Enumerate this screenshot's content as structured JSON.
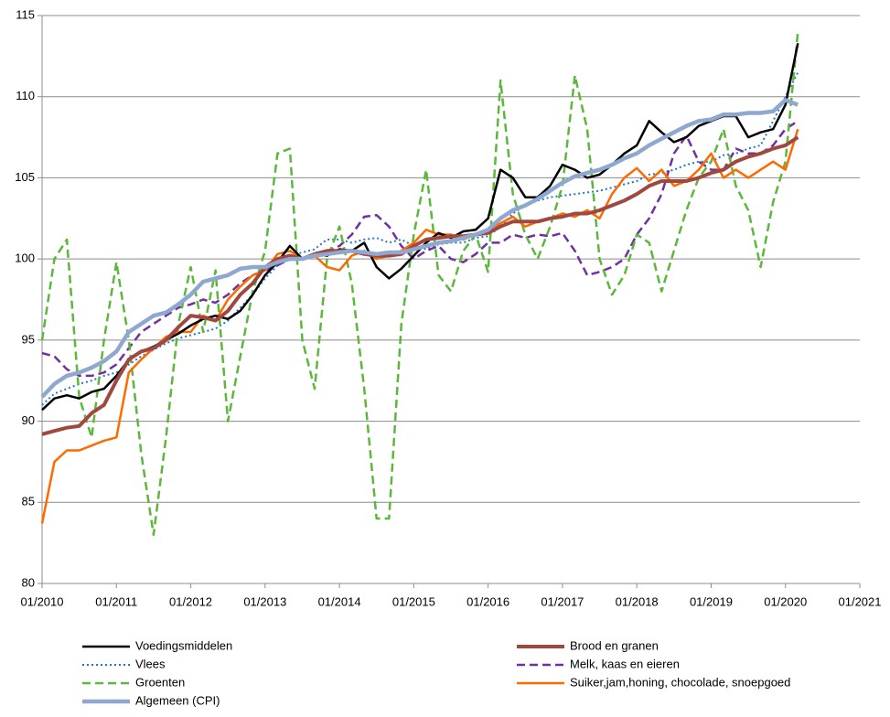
{
  "chart_data": {
    "type": "line",
    "x": [
      "01/2010",
      "03/2010",
      "05/2010",
      "07/2010",
      "09/2010",
      "11/2010",
      "01/2011",
      "03/2011",
      "05/2011",
      "07/2011",
      "09/2011",
      "11/2011",
      "01/2012",
      "03/2012",
      "05/2012",
      "07/2012",
      "09/2012",
      "11/2012",
      "01/2013",
      "03/2013",
      "05/2013",
      "07/2013",
      "09/2013",
      "11/2013",
      "01/2014",
      "03/2014",
      "05/2014",
      "07/2014",
      "09/2014",
      "11/2014",
      "01/2015",
      "03/2015",
      "05/2015",
      "07/2015",
      "09/2015",
      "11/2015",
      "01/2016",
      "03/2016",
      "05/2016",
      "07/2016",
      "09/2016",
      "11/2016",
      "01/2017",
      "03/2017",
      "05/2017",
      "07/2017",
      "09/2017",
      "11/2017",
      "01/2018",
      "03/2018",
      "05/2018",
      "07/2018",
      "09/2018",
      "11/2018",
      "01/2019",
      "03/2019",
      "05/2019",
      "07/2019",
      "09/2019",
      "11/2019",
      "01/2020",
      "03/2020"
    ],
    "series": [
      {
        "name": "Voedingsmiddelen",
        "color": "#000000",
        "line_style": "solid",
        "values": [
          90.7,
          91.4,
          91.6,
          91.4,
          91.8,
          92.0,
          92.8,
          93.8,
          94.3,
          94.6,
          95.0,
          95.4,
          95.9,
          96.3,
          96.5,
          96.3,
          96.8,
          97.8,
          99.0,
          99.8,
          100.8,
          100.0,
          100.3,
          100.2,
          100.6,
          100.5,
          101.0,
          99.5,
          98.8,
          99.4,
          100.2,
          101.0,
          101.6,
          101.3,
          101.7,
          101.8,
          102.5,
          105.5,
          105.0,
          103.8,
          103.8,
          104.5,
          105.8,
          105.5,
          105.0,
          105.2,
          105.8,
          106.5,
          107.0,
          108.5,
          107.8,
          107.2,
          107.5,
          108.2,
          108.5,
          108.8,
          108.8,
          107.5,
          107.8,
          108.0,
          109.5,
          113.3
        ]
      },
      {
        "name": "Brood en granen",
        "color": "#a0473f",
        "line_style": "solid",
        "values": [
          89.2,
          89.4,
          89.6,
          89.7,
          90.5,
          91.0,
          92.5,
          93.8,
          94.3,
          94.5,
          95.0,
          95.8,
          96.5,
          96.4,
          96.2,
          96.8,
          97.8,
          98.5,
          99.5,
          100.0,
          100.2,
          100.0,
          100.3,
          100.5,
          100.5,
          100.5,
          100.3,
          100.2,
          100.2,
          100.3,
          100.8,
          101.2,
          101.3,
          101.4,
          101.4,
          101.5,
          101.6,
          102.0,
          102.3,
          102.3,
          102.3,
          102.5,
          102.6,
          102.8,
          102.8,
          103.0,
          103.3,
          103.6,
          104.0,
          104.5,
          104.8,
          104.8,
          104.8,
          105.0,
          105.3,
          105.5,
          106.0,
          106.3,
          106.5,
          106.8,
          107.0,
          107.5
        ]
      },
      {
        "name": "Vlees",
        "color": "#1f78c8",
        "line_style": "dotted",
        "values": [
          91.0,
          91.7,
          92.0,
          92.3,
          92.5,
          92.8,
          93.0,
          93.5,
          94.0,
          94.4,
          94.8,
          95.1,
          95.3,
          95.5,
          95.7,
          96.2,
          97.0,
          97.8,
          98.8,
          99.6,
          100.2,
          100.4,
          100.6,
          101.2,
          101.2,
          101.0,
          101.2,
          101.3,
          101.0,
          101.2,
          100.8,
          100.6,
          100.9,
          101.0,
          101.0,
          101.3,
          101.4,
          102.0,
          102.8,
          103.3,
          103.6,
          103.8,
          103.9,
          104.0,
          104.1,
          104.2,
          104.4,
          104.6,
          104.8,
          105.2,
          105.3,
          105.5,
          105.8,
          106.0,
          106.0,
          106.4,
          106.5,
          106.8,
          107.0,
          108.5,
          110.0,
          111.5
        ]
      },
      {
        "name": "Melk, kaas en eieren",
        "color": "#7030a0",
        "line_style": "dashed",
        "values": [
          94.2,
          94.0,
          93.2,
          92.8,
          92.8,
          93.0,
          93.5,
          94.5,
          95.5,
          96.0,
          96.5,
          97.0,
          97.2,
          97.5,
          97.3,
          97.8,
          98.5,
          99.0,
          99.3,
          99.6,
          100.0,
          100.0,
          100.2,
          100.5,
          100.8,
          101.5,
          102.6,
          102.7,
          102.0,
          100.8,
          100.0,
          100.5,
          100.8,
          100.0,
          99.8,
          100.3,
          101.0,
          101.0,
          101.5,
          101.3,
          101.5,
          101.4,
          101.6,
          100.5,
          99.0,
          99.2,
          99.5,
          100.0,
          101.5,
          102.5,
          104.0,
          106.5,
          107.6,
          106.0,
          105.5,
          105.5,
          106.8,
          106.5,
          106.5,
          107.0,
          108.0,
          108.5
        ]
      },
      {
        "name": "Groenten",
        "color": "#5cb83a",
        "line_style": "dashed",
        "values": [
          95.0,
          100.0,
          101.2,
          91.5,
          89.0,
          95.0,
          99.8,
          95.0,
          88.0,
          83.0,
          89.0,
          96.0,
          99.5,
          95.5,
          99.3,
          90.0,
          94.0,
          98.0,
          100.5,
          106.5,
          106.8,
          95.0,
          92.0,
          100.0,
          102.0,
          98.5,
          92.0,
          84.0,
          84.0,
          96.0,
          101.5,
          105.5,
          99.0,
          98.0,
          100.5,
          101.5,
          99.2,
          111.0,
          104.0,
          101.5,
          100.0,
          102.0,
          104.5,
          111.3,
          108.0,
          100.0,
          97.8,
          99.0,
          101.5,
          101.0,
          98.0,
          100.5,
          103.0,
          105.0,
          106.0,
          108.0,
          104.5,
          103.0,
          99.5,
          103.5,
          106.0,
          114.0
        ]
      },
      {
        "name": "Suiker,jam,honing, chocolade, snoepgoed",
        "color": "#ff6a00",
        "line_style": "solid",
        "values": [
          83.7,
          87.5,
          88.2,
          88.2,
          88.5,
          88.8,
          89.0,
          93.0,
          93.8,
          94.5,
          95.2,
          95.5,
          95.5,
          96.5,
          96.2,
          97.5,
          98.3,
          99.0,
          99.3,
          100.3,
          100.5,
          100.0,
          100.2,
          99.5,
          99.3,
          100.2,
          100.5,
          100.0,
          100.2,
          100.5,
          101.0,
          101.8,
          101.5,
          101.5,
          101.2,
          101.5,
          101.8,
          102.2,
          102.6,
          102.0,
          102.3,
          102.5,
          102.8,
          102.6,
          103.0,
          102.5,
          104.0,
          105.0,
          105.6,
          104.8,
          105.5,
          104.5,
          104.8,
          105.5,
          106.5,
          105.0,
          105.5,
          105.0,
          105.5,
          106.0,
          105.5,
          108.0
        ]
      },
      {
        "name": "Algemeen (CPI)",
        "color": "#8fa8cf",
        "line_style": "solid",
        "values": [
          91.5,
          92.3,
          92.8,
          93.0,
          93.3,
          93.7,
          94.3,
          95.5,
          96.0,
          96.5,
          96.7,
          97.2,
          97.8,
          98.6,
          98.8,
          99.0,
          99.4,
          99.5,
          99.5,
          99.8,
          100.0,
          100.0,
          100.2,
          100.3,
          100.4,
          100.5,
          100.4,
          100.3,
          100.4,
          100.4,
          100.6,
          100.8,
          101.0,
          101.1,
          101.3,
          101.5,
          101.8,
          102.5,
          103.0,
          103.3,
          103.7,
          104.2,
          104.7,
          105.1,
          105.3,
          105.5,
          105.8,
          106.2,
          106.5,
          107.0,
          107.4,
          107.8,
          108.2,
          108.5,
          108.6,
          108.9,
          108.9,
          109.0,
          109.0,
          109.1,
          109.8,
          109.5
        ]
      }
    ],
    "xlim": [
      "01/2010",
      "01/2021"
    ],
    "xticks": [
      "01/2010",
      "01/2011",
      "01/2012",
      "01/2013",
      "01/2014",
      "01/2015",
      "01/2016",
      "01/2017",
      "01/2018",
      "01/2019",
      "01/2020",
      "01/2021"
    ],
    "ylim": [
      80,
      115
    ],
    "yticks": [
      80,
      85,
      90,
      95,
      100,
      105,
      110,
      115
    ],
    "grid": true
  }
}
